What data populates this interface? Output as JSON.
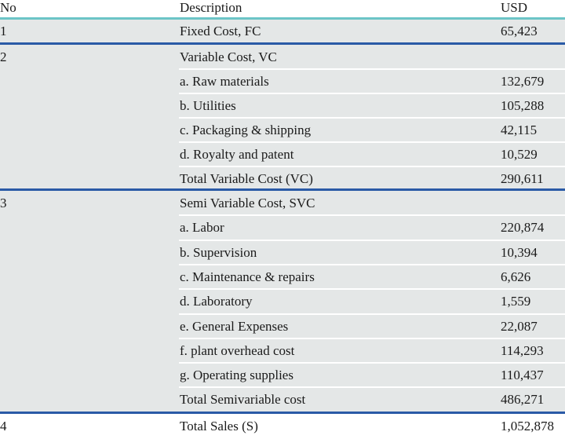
{
  "header": {
    "no": "No",
    "description": "Description",
    "usd": "USD"
  },
  "groups": [
    {
      "no": "1",
      "rows": [
        {
          "description": "Fixed Cost, FC",
          "usd": "65,423"
        }
      ]
    },
    {
      "no": "2",
      "rows": [
        {
          "description": "Variable Cost, VC",
          "usd": ""
        },
        {
          "description": "a. Raw materials",
          "usd": "132,679"
        },
        {
          "description": "b. Utilities",
          "usd": "105,288"
        },
        {
          "description": "c. Packaging & shipping",
          "usd": "42,115"
        },
        {
          "description": "d. Royalty and patent",
          "usd": "10,529"
        },
        {
          "description": "Total Variable Cost (VC)",
          "usd": "290,611"
        }
      ]
    },
    {
      "no": "3",
      "rows": [
        {
          "description": "Semi Variable Cost, SVC",
          "usd": ""
        },
        {
          "description": "a. Labor",
          "usd": "220,874"
        },
        {
          "description": "b. Supervision",
          "usd": "10,394"
        },
        {
          "description": "c. Maintenance & repairs",
          "usd": "6,626"
        },
        {
          "description": "d. Laboratory",
          "usd": "1,559"
        },
        {
          "description": "e. General Expenses",
          "usd": "22,087"
        },
        {
          "description": "f. plant overhead cost",
          "usd": "114,293"
        },
        {
          "description": "g. Operating supplies",
          "usd": "110,437"
        },
        {
          "description": "Total Semivariable cost",
          "usd": "486,271"
        }
      ]
    },
    {
      "no": "4",
      "rows": [
        {
          "description": "Total Sales (S)",
          "usd": "1,052,878"
        }
      ]
    }
  ],
  "colors": {
    "header_rule": "#6cc5c7",
    "group_rule": "#2a5aa6",
    "row_bg": "#e4e7e7"
  }
}
